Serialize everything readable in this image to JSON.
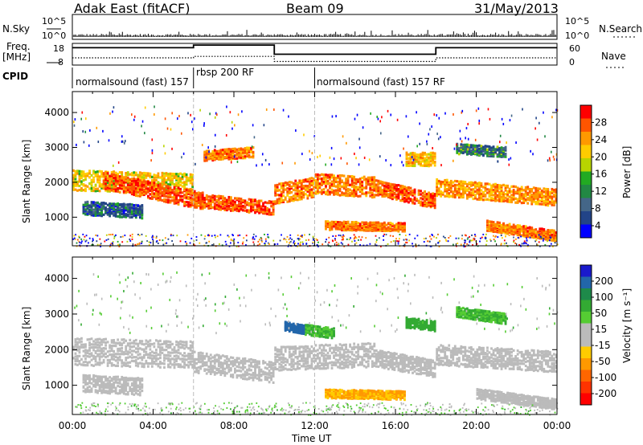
{
  "header": {
    "station": "Adak East (fitACF)",
    "beam": "Beam 09",
    "date": "31/May/2013"
  },
  "sky_panel": {
    "left_label": "N.Sky",
    "right_label": "N.Search",
    "left_ticks": [
      "10^5",
      "10^0"
    ],
    "right_ticks": [
      "10^5",
      "10^0"
    ]
  },
  "freq_panel": {
    "left_label_1": "Freq.",
    "left_label_2": "[MHz]",
    "right_label": "Nave",
    "left_ticks": [
      "18",
      "8"
    ],
    "right_ticks": [
      "60",
      "0"
    ]
  },
  "cpid_panel": {
    "label": "CPID",
    "modes": [
      {
        "name": "normalsound (fast) 157",
        "start": 0.0
      },
      {
        "name": "rbsp 200 RF",
        "start": 6.0
      },
      {
        "name": "normalsound (fast) 157 RF",
        "start": 12.0
      }
    ]
  },
  "x_axis": {
    "label": "Time UT",
    "ticks": [
      "00:00",
      "04:00",
      "08:00",
      "12:00",
      "16:00",
      "20:00",
      "00:00"
    ]
  },
  "power_colorbar": {
    "label": "Power [dB]",
    "ticks": [
      "28",
      "24",
      "20",
      "16",
      "12",
      "8",
      "4"
    ],
    "colors": [
      "#ff0000",
      "#ff5500",
      "#ff9900",
      "#ffcc00",
      "#b8d400",
      "#22aa22",
      "#228844",
      "#446688",
      "#224488",
      "#0000ff"
    ]
  },
  "velocity_colorbar": {
    "label": "Velocity [m s⁻¹]",
    "ticks": [
      "200",
      "100",
      "50",
      "15",
      "-15",
      "-50",
      "-100",
      "-200"
    ],
    "colors": [
      "#1a1acc",
      "#2266aa",
      "#1e8a4a",
      "#33aa33",
      "#55cc33",
      "#bbbbbb",
      "#bbbbbb",
      "#ffcc00",
      "#ff9900",
      "#ff6600",
      "#ff3300",
      "#ff0000"
    ]
  },
  "chart_data": [
    {
      "type": "line",
      "title": "N.Sky / N.Search",
      "x_range_hours": [
        0,
        24
      ],
      "yscale": "log",
      "ylim": [
        1,
        100000
      ],
      "series": [
        {
          "name": "N.Sky"
        },
        {
          "name": "N.Search"
        }
      ]
    },
    {
      "type": "line",
      "x_range_hours": [
        0,
        24
      ],
      "ylim_left": [
        8,
        18
      ],
      "ylim_right": [
        0,
        60
      ],
      "series": [
        {
          "name": "Freq.",
          "x": [
            0,
            6,
            6,
            10,
            10,
            18,
            18,
            24
          ],
          "y": [
            16.0,
            16.0,
            17.2,
            17.2,
            13.0,
            13.0,
            16.0,
            16.0
          ]
        },
        {
          "name": "Nave",
          "x": [
            0,
            6,
            6,
            10,
            10,
            18,
            18,
            24
          ],
          "y": [
            20,
            20,
            24,
            24,
            10,
            10,
            20,
            20
          ]
        }
      ]
    },
    {
      "type": "heatmap",
      "title": "Power",
      "x_range_hours": [
        0,
        24
      ],
      "ylabel": "Slant Range [km]",
      "ylim": [
        180,
        4600
      ],
      "yticks": [
        "1000",
        "2000",
        "3000",
        "4000"
      ],
      "echo_bands": [
        {
          "t0": 0.0,
          "t1": 6.0,
          "r_start": 2100,
          "r_end": 2000,
          "width": 600,
          "level": 18
        },
        {
          "t0": 1.5,
          "t1": 6.5,
          "r_start": 2100,
          "r_end": 1500,
          "width": 500,
          "level": 26
        },
        {
          "t0": 6.5,
          "t1": 10.0,
          "r_start": 1500,
          "r_end": 1300,
          "width": 400,
          "level": 26
        },
        {
          "t0": 10.0,
          "t1": 12.0,
          "r_start": 1700,
          "r_end": 1900,
          "width": 600,
          "level": 24
        },
        {
          "t0": 12.0,
          "t1": 15.0,
          "r_start": 2000,
          "r_end": 1900,
          "width": 600,
          "level": 24
        },
        {
          "t0": 15.0,
          "t1": 18.0,
          "r_start": 1900,
          "r_end": 1500,
          "width": 450,
          "level": 26
        },
        {
          "t0": 18.0,
          "t1": 24.0,
          "r_start": 1900,
          "r_end": 1600,
          "width": 500,
          "level": 22
        },
        {
          "t0": 6.5,
          "t1": 9.0,
          "r_start": 2800,
          "r_end": 2900,
          "width": 300,
          "level": 24
        },
        {
          "t0": 12.5,
          "t1": 16.5,
          "r_start": 800,
          "r_end": 750,
          "width": 250,
          "level": 24
        },
        {
          "t0": 16.5,
          "t1": 18.0,
          "r_start": 2700,
          "r_end": 2700,
          "width": 400,
          "level": 20
        },
        {
          "t0": 19.0,
          "t1": 21.5,
          "r_start": 3000,
          "r_end": 2900,
          "width": 300,
          "level": 10
        },
        {
          "t0": 0.5,
          "t1": 3.5,
          "r_start": 1300,
          "r_end": 1200,
          "width": 400,
          "level": 8
        },
        {
          "t0": 20.5,
          "t1": 24.0,
          "r_start": 800,
          "r_end": 500,
          "width": 300,
          "level": 24
        }
      ]
    },
    {
      "type": "heatmap",
      "title": "Velocity",
      "x_range_hours": [
        0,
        24
      ],
      "ylabel": "Slant Range [km]",
      "ylim": [
        180,
        4600
      ],
      "yticks": [
        "1000",
        "2000",
        "3000",
        "4000"
      ],
      "echo_bands": [
        {
          "t0": 0.0,
          "t1": 6.0,
          "r_start": 2000,
          "r_end": 1900,
          "width": 800,
          "level": 0
        },
        {
          "t0": 6.0,
          "t1": 10.0,
          "r_start": 1700,
          "r_end": 1400,
          "width": 600,
          "level": 0
        },
        {
          "t0": 10.0,
          "t1": 15.0,
          "r_start": 1800,
          "r_end": 1900,
          "width": 700,
          "level": 0
        },
        {
          "t0": 15.0,
          "t1": 18.0,
          "r_start": 1800,
          "r_end": 1500,
          "width": 500,
          "level": 10
        },
        {
          "t0": 18.0,
          "t1": 24.0,
          "r_start": 1900,
          "r_end": 1700,
          "width": 600,
          "level": 0
        },
        {
          "t0": 0.5,
          "t1": 3.5,
          "r_start": 1100,
          "r_end": 1000,
          "width": 500,
          "level": 0
        },
        {
          "t0": 12.5,
          "t1": 16.5,
          "r_start": 800,
          "r_end": 750,
          "width": 250,
          "level": -30
        },
        {
          "t0": 11.5,
          "t1": 13.0,
          "r_start": 2600,
          "r_end": 2500,
          "width": 300,
          "level": 30
        },
        {
          "t0": 10.5,
          "t1": 11.5,
          "r_start": 2700,
          "r_end": 2600,
          "width": 250,
          "level": 150
        },
        {
          "t0": 16.5,
          "t1": 18.0,
          "r_start": 2800,
          "r_end": 2700,
          "width": 300,
          "level": 40
        },
        {
          "t0": 19.0,
          "t1": 21.5,
          "r_start": 3100,
          "r_end": 2900,
          "width": 300,
          "level": 30
        },
        {
          "t0": 20.0,
          "t1": 24.0,
          "r_start": 800,
          "r_end": 500,
          "width": 300,
          "level": 0
        }
      ]
    }
  ]
}
